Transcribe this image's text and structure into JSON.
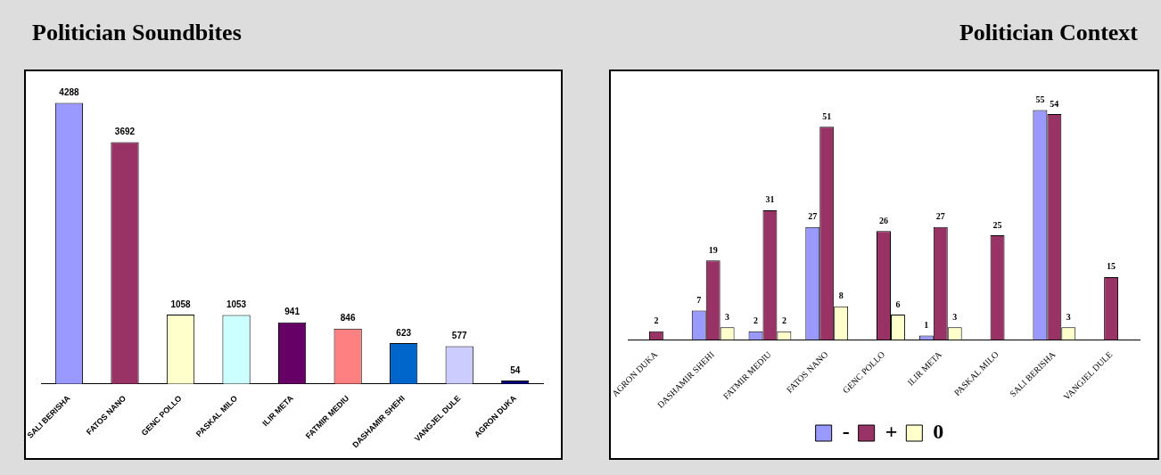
{
  "chart_data": [
    {
      "type": "bar",
      "title": "Politician Soundbites",
      "categories": [
        "SALI BERISHA",
        "FATOS NANO",
        "GENC POLLO",
        "PASKAL MILO",
        "ILIR META",
        "FATMIR MEDIU",
        "DASHAMIR SHEHI",
        "VANGJEL DULE",
        "AGRON DUKA"
      ],
      "values": [
        4288,
        3692,
        1058,
        1053,
        941,
        846,
        623,
        577,
        54
      ],
      "colors": [
        "#9999ff",
        "#993366",
        "#ffffcc",
        "#ccffff",
        "#660066",
        "#ff8080",
        "#0066cc",
        "#ccccff",
        "#000080"
      ],
      "data_labels": true,
      "tick_labels": "x"
    },
    {
      "type": "bar",
      "title": "Politician Context",
      "categories": [
        "AGRON DUKA",
        "DASHAMIR SHEHI",
        "FATMIR MEDIU",
        "FATOS NANO",
        "GENC POLLO",
        "ILIR META",
        "PASKAL MILO",
        "SALI BERISHA",
        "VANGJEL DULE"
      ],
      "series": [
        {
          "name": "-",
          "color": "#9999ff",
          "values": [
            null,
            7,
            2,
            27,
            null,
            1,
            null,
            55,
            null
          ]
        },
        {
          "name": "+",
          "color": "#993366",
          "values": [
            2,
            19,
            31,
            51,
            26,
            27,
            25,
            54,
            15
          ]
        },
        {
          "name": "0",
          "color": "#ffffcc",
          "values": [
            null,
            3,
            2,
            8,
            6,
            3,
            null,
            3,
            null
          ]
        }
      ],
      "data_labels": true,
      "tick_labels": "x",
      "legend": "bottom"
    }
  ]
}
